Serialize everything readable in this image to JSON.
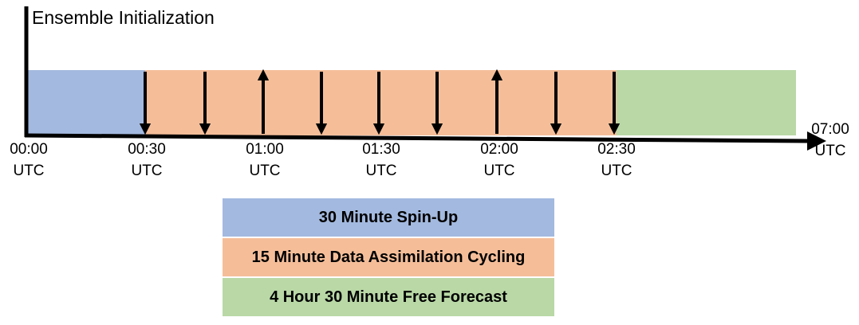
{
  "title": "Ensemble Initialization",
  "colors": {
    "spinup": "#a3b9df",
    "cycling": "#f5be99",
    "forecast": "#b9d8a6",
    "axis": "#000000"
  },
  "timeline": {
    "ticks": [
      {
        "time": "00:00",
        "zone": "UTC"
      },
      {
        "time": "00:30",
        "zone": "UTC"
      },
      {
        "time": "01:00",
        "zone": "UTC"
      },
      {
        "time": "01:30",
        "zone": "UTC"
      },
      {
        "time": "02:00",
        "zone": "UTC"
      },
      {
        "time": "02:30",
        "zone": "UTC"
      },
      {
        "time": "07:00",
        "zone": "UTC"
      }
    ],
    "arrows": [
      {
        "direction": "down"
      },
      {
        "direction": "down"
      },
      {
        "direction": "up"
      },
      {
        "direction": "down"
      },
      {
        "direction": "down"
      },
      {
        "direction": "down"
      },
      {
        "direction": "up"
      },
      {
        "direction": "down"
      },
      {
        "direction": "down"
      }
    ]
  },
  "legend": [
    {
      "label": "30 Minute Spin-Up",
      "key": "spinup"
    },
    {
      "label": "15 Minute Data Assimilation Cycling",
      "key": "cycling"
    },
    {
      "label": "4 Hour 30 Minute Free Forecast",
      "key": "forecast"
    }
  ]
}
